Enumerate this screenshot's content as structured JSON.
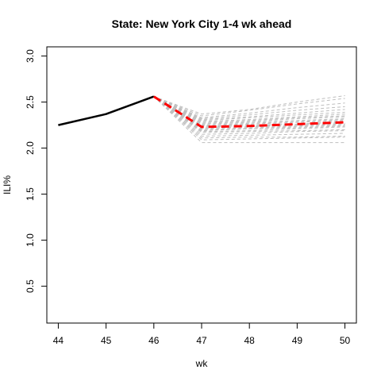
{
  "chart_data": {
    "type": "line",
    "title": "State: New York City 1-4 wk ahead",
    "xlabel": "wk",
    "ylabel": "ILI%",
    "xlim": [
      44,
      50
    ],
    "ylim": [
      0.1,
      3.1
    ],
    "x_ticks": [
      44,
      45,
      46,
      47,
      48,
      49,
      50
    ],
    "y_ticks": [
      0.5,
      1.0,
      1.5,
      2.0,
      2.5,
      3.0
    ],
    "y_tick_labels": [
      "0.5",
      "1.0",
      "1.5",
      "2.0",
      "2.5",
      "3.0"
    ],
    "grid": false,
    "observed": {
      "color": "#000000",
      "x": [
        44,
        45,
        46
      ],
      "y": [
        2.25,
        2.37,
        2.56
      ]
    },
    "forecast_mean": {
      "color": "#ff0000",
      "x": [
        46,
        47,
        48,
        49,
        50
      ],
      "y": [
        2.56,
        2.23,
        2.24,
        2.26,
        2.28
      ]
    },
    "simulations": {
      "color": "#bebebe",
      "x": [
        46,
        47,
        48,
        49,
        50
      ],
      "paths": [
        [
          2.56,
          2.06,
          2.06,
          2.06,
          2.06
        ],
        [
          2.56,
          2.09,
          2.1,
          2.11,
          2.12
        ],
        [
          2.56,
          2.11,
          2.12,
          2.12,
          2.13
        ],
        [
          2.56,
          2.13,
          2.14,
          2.15,
          2.16
        ],
        [
          2.56,
          2.15,
          2.16,
          2.18,
          2.19
        ],
        [
          2.56,
          2.17,
          2.18,
          2.19,
          2.2
        ],
        [
          2.56,
          2.18,
          2.19,
          2.21,
          2.23
        ],
        [
          2.56,
          2.19,
          2.21,
          2.22,
          2.24
        ],
        [
          2.56,
          2.2,
          2.21,
          2.23,
          2.25
        ],
        [
          2.56,
          2.21,
          2.22,
          2.24,
          2.26
        ],
        [
          2.56,
          2.22,
          2.23,
          2.25,
          2.27
        ],
        [
          2.56,
          2.23,
          2.24,
          2.26,
          2.28
        ],
        [
          2.56,
          2.24,
          2.25,
          2.26,
          2.29
        ],
        [
          2.56,
          2.24,
          2.26,
          2.28,
          2.3
        ],
        [
          2.56,
          2.25,
          2.27,
          2.29,
          2.31
        ],
        [
          2.56,
          2.26,
          2.28,
          2.3,
          2.32
        ],
        [
          2.56,
          2.27,
          2.29,
          2.32,
          2.34
        ],
        [
          2.56,
          2.28,
          2.3,
          2.33,
          2.35
        ],
        [
          2.56,
          2.29,
          2.31,
          2.34,
          2.37
        ],
        [
          2.56,
          2.3,
          2.33,
          2.36,
          2.39
        ],
        [
          2.56,
          2.31,
          2.34,
          2.38,
          2.42
        ],
        [
          2.56,
          2.32,
          2.36,
          2.41,
          2.45
        ],
        [
          2.56,
          2.33,
          2.38,
          2.44,
          2.49
        ],
        [
          2.56,
          2.35,
          2.41,
          2.48,
          2.54
        ],
        [
          2.56,
          2.37,
          2.42,
          2.5,
          2.57
        ]
      ]
    }
  }
}
